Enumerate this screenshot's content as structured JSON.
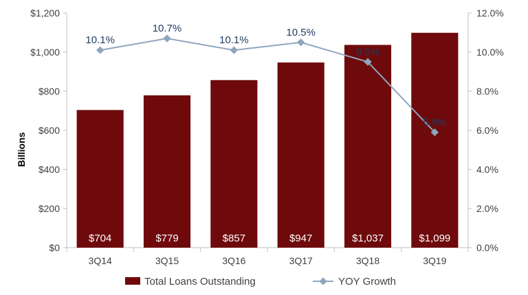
{
  "chart_data": {
    "type": "bar",
    "title": "",
    "categories": [
      "3Q14",
      "3Q15",
      "3Q16",
      "3Q17",
      "3Q18",
      "3Q19"
    ],
    "series": [
      {
        "name": "Total Loans Outstanding",
        "type": "bar",
        "axis": "left",
        "values": [
          704,
          779,
          857,
          947,
          1037,
          1099
        ],
        "labels": [
          "$704",
          "$779",
          "$857",
          "$947",
          "$1,037",
          "$1,099"
        ],
        "color": "#6f0a0c"
      },
      {
        "name": "YOY Growth",
        "type": "line",
        "axis": "right",
        "values": [
          10.1,
          10.7,
          10.1,
          10.5,
          9.5,
          5.9
        ],
        "labels": [
          "10.1%",
          "10.7%",
          "10.1%",
          "10.5%",
          "9.5%",
          "5.9%"
        ],
        "color": "#8ea6bd"
      }
    ],
    "ylabel": "Billions",
    "ylim": [
      0,
      1200
    ],
    "y_ticks": [
      0,
      200,
      400,
      600,
      800,
      1000,
      1200
    ],
    "y_tick_labels": [
      "$0",
      "$200",
      "$400",
      "$600",
      "$800",
      "$1,000",
      "$1,200"
    ],
    "y2lim": [
      0,
      12
    ],
    "y2_ticks": [
      0,
      2,
      4,
      6,
      8,
      10,
      12
    ],
    "y2_tick_labels": [
      "0.0%",
      "2.0%",
      "4.0%",
      "6.0%",
      "8.0%",
      "10.0%",
      "12.0%"
    ],
    "legend": {
      "position": "bottom",
      "items": [
        "Total Loans Outstanding",
        "YOY Growth"
      ]
    },
    "grid": false
  }
}
